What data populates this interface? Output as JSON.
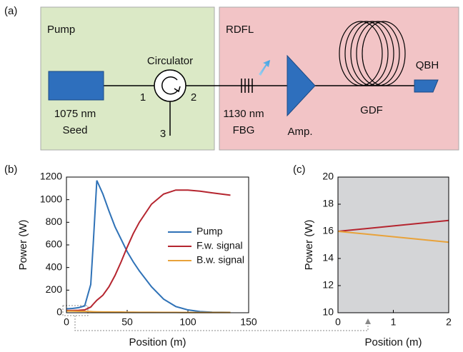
{
  "diagram": {
    "label": "(a)",
    "pump_section": "Pump",
    "rdfl_section": "RDFL",
    "circulator": "Circulator",
    "port1": "1",
    "port2": "2",
    "port3": "3",
    "seed_line1": "1075 nm",
    "seed_line2": "Seed",
    "fbg_line1": "1130 nm",
    "fbg_line2": "FBG",
    "amp": "Amp.",
    "gdf": "GDF",
    "qbh": "QBH"
  },
  "chart_data": [
    {
      "type": "line",
      "label": "(b)",
      "x_label": "Position (m)",
      "y_label": "Power (W)",
      "x": [
        0,
        5,
        10,
        15,
        20,
        22,
        25,
        30,
        35,
        40,
        45,
        50,
        55,
        60,
        70,
        80,
        90,
        100,
        110,
        120,
        135
      ],
      "series": [
        {
          "name": "Pump",
          "color": "#2f72b7",
          "values": [
            35,
            38,
            45,
            60,
            250,
            600,
            1170,
            1050,
            900,
            760,
            650,
            540,
            450,
            370,
            230,
            120,
            55,
            25,
            10,
            5,
            3
          ]
        },
        {
          "name": "F.w. signal",
          "color": "#b5252f",
          "values": [
            20,
            20,
            21,
            25,
            50,
            75,
            110,
            155,
            230,
            330,
            450,
            580,
            700,
            800,
            960,
            1050,
            1085,
            1085,
            1075,
            1060,
            1040
          ]
        },
        {
          "name": "B.w. signal",
          "color": "#e8a23a",
          "values": [
            15,
            14,
            13,
            12,
            10,
            9,
            8,
            7,
            7,
            6,
            6,
            5,
            5,
            4,
            4,
            3,
            3,
            2,
            2,
            2,
            2
          ]
        }
      ],
      "xlim": [
        0,
        150
      ],
      "xticks": [
        0,
        50,
        100,
        150
      ],
      "ylim": [
        0,
        1200
      ],
      "yticks": [
        0,
        200,
        400,
        600,
        800,
        1000,
        1200
      ],
      "legend": true
    },
    {
      "type": "line",
      "label": "(c)",
      "x_label": "Position (m)",
      "y_label": "Power (W)",
      "x": [
        0,
        2
      ],
      "series": [
        {
          "color": "#b5252f",
          "values": [
            16,
            16.8
          ]
        },
        {
          "color": "#e8a23a",
          "values": [
            16,
            15.2
          ]
        }
      ],
      "xlim": [
        0,
        2
      ],
      "xticks": [
        0,
        1,
        2
      ],
      "ylim": [
        10,
        20
      ],
      "yticks": [
        10,
        12,
        14,
        16,
        18,
        20
      ],
      "background": "#d4d5d7",
      "legend": false
    }
  ]
}
